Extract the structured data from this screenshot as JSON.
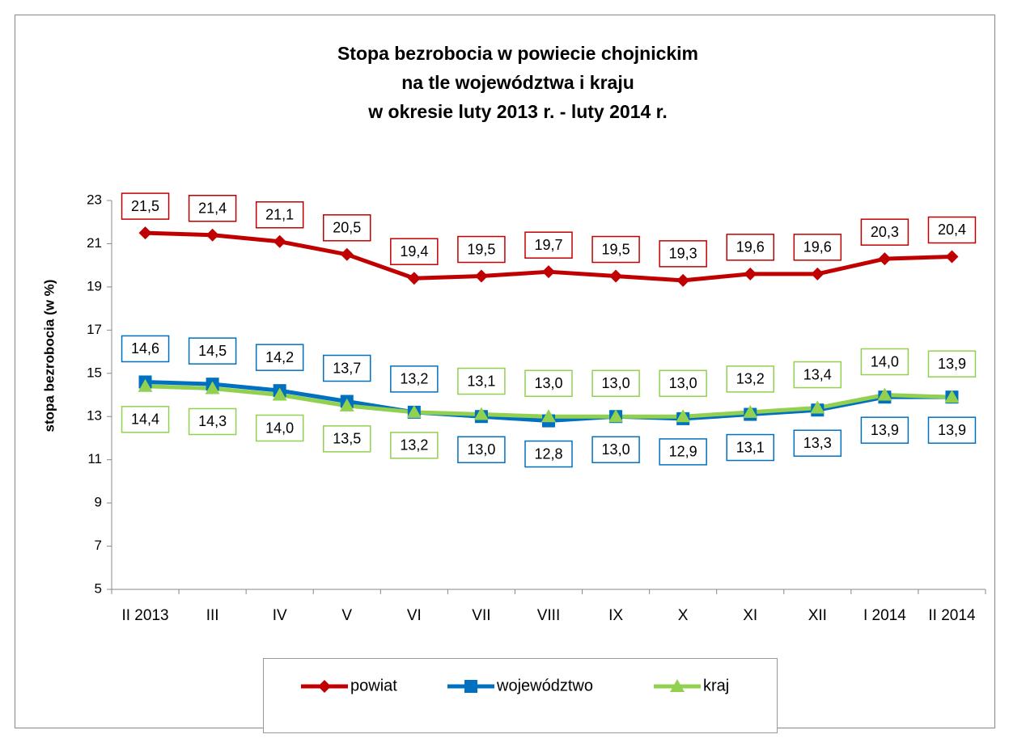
{
  "chart_data": {
    "type": "line",
    "title": [
      "Stopa bezrobocia w powiecie chojnickim",
      "na tle województwa i kraju",
      "w okresie luty 2013 r. - luty 2014 r."
    ],
    "y_label": "stopa bezrobocia (w %)",
    "categories": [
      "II 2013",
      "III",
      "IV",
      "V",
      "VI",
      "VII",
      "VIII",
      "IX",
      "X",
      "XI",
      "XII",
      "I 2014",
      "II 2014"
    ],
    "ylim": [
      5,
      23
    ],
    "yticks": [
      5,
      7,
      9,
      11,
      13,
      15,
      17,
      19,
      21,
      23
    ],
    "series": [
      {
        "name": "powiat",
        "color": "#c00000",
        "marker": "diamond",
        "values": [
          21.5,
          21.4,
          21.1,
          20.5,
          19.4,
          19.5,
          19.7,
          19.5,
          19.3,
          19.6,
          19.6,
          20.3,
          20.4
        ],
        "value_labels": [
          "21,5",
          "21,4",
          "21,1",
          "20,5",
          "19,4",
          "19,5",
          "19,7",
          "19,5",
          "19,3",
          "19,6",
          "19,6",
          "20,3",
          "20,4"
        ]
      },
      {
        "name": "województwo",
        "color": "#0070c0",
        "marker": "square",
        "values": [
          14.6,
          14.5,
          14.2,
          13.7,
          13.2,
          13.0,
          12.8,
          13.0,
          12.9,
          13.1,
          13.3,
          13.9,
          13.9
        ],
        "value_labels": [
          "14,6",
          "14,5",
          "14,2",
          "13,7",
          "13,2",
          "13,0",
          "12,8",
          "13,0",
          "12,9",
          "13,1",
          "13,3",
          "13,9",
          "13,9"
        ]
      },
      {
        "name": "kraj",
        "color": "#92d050",
        "marker": "triangle",
        "values": [
          14.4,
          14.3,
          14.0,
          13.5,
          13.2,
          13.1,
          13.0,
          13.0,
          13.0,
          13.2,
          13.4,
          14.0,
          13.9
        ],
        "value_labels": [
          "14,4",
          "14,3",
          "14,0",
          "13,5",
          "13,2",
          "13,1",
          "13,0",
          "13,0",
          "13,0",
          "13,2",
          "13,4",
          "14,0",
          "13,9"
        ]
      }
    ]
  }
}
